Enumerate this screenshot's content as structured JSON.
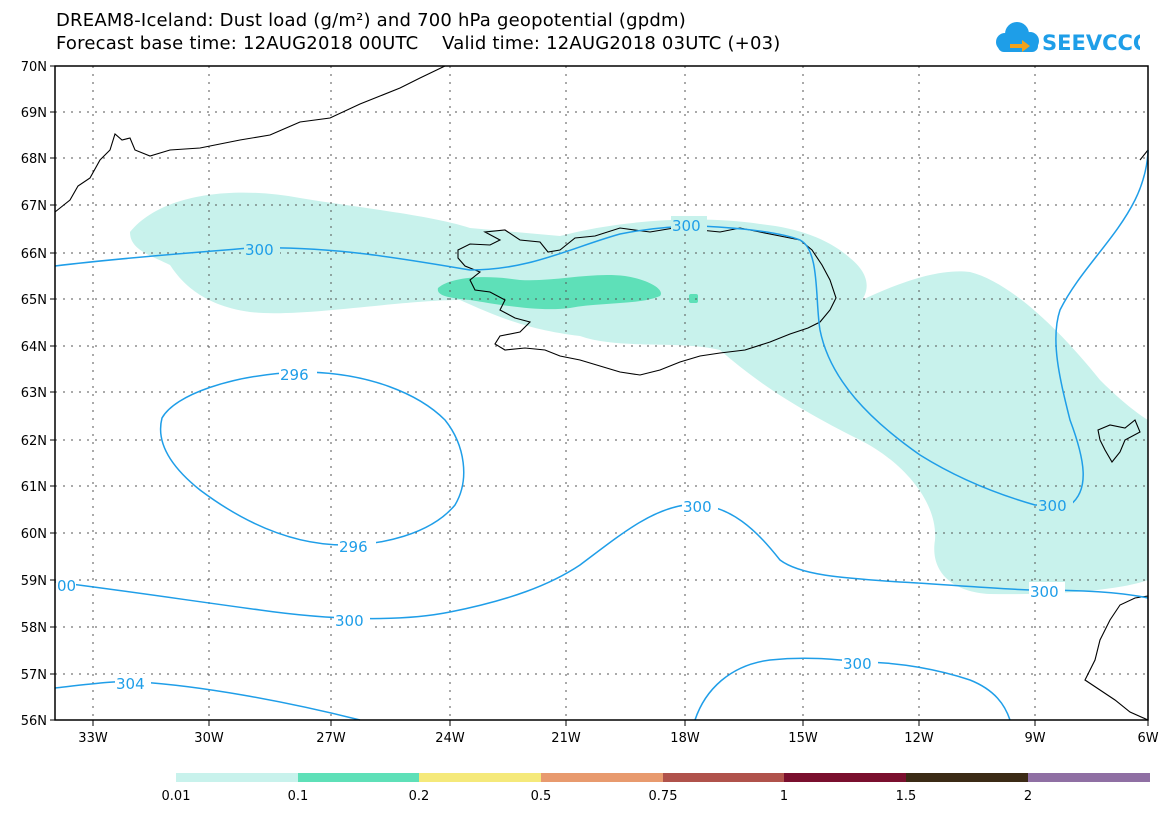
{
  "title_line1": "DREAM8-Iceland: Dust load (g/m²) and 700 hPa geopotential (gpdm)",
  "title_line2": "Forecast base time: 12AUG2018 00UTC    Valid time: 12AUG2018 03UTC (+03)",
  "logo_text": "SEEVCCC",
  "lat_labels": [
    "70N",
    "69N",
    "68N",
    "67N",
    "66N",
    "65N",
    "64N",
    "63N",
    "62N",
    "61N",
    "60N",
    "59N",
    "58N",
    "57N",
    "56N"
  ],
  "lon_labels": [
    "33W",
    "30W",
    "27W",
    "24W",
    "21W",
    "18W",
    "15W",
    "12W",
    "9W",
    "6W"
  ],
  "contour_labels": {
    "c300_north_w": "300",
    "c300_north_e": "300",
    "c296": "296",
    "c296_b": "296",
    "c300_mid": "300",
    "c300_south": "300",
    "c300_east": "300",
    "c300_se": "300",
    "c300_low": "300",
    "c304": "304",
    "c300_edge": "00"
  },
  "colorbar": {
    "colors": [
      "#c8f2ec",
      "#5ee0b8",
      "#f5e97a",
      "#e89a6e",
      "#b0524b",
      "#7a0f2e",
      "#3b2a15",
      "#8f6fa3"
    ],
    "labels": [
      "0.01",
      "0.1",
      "0.2",
      "0.5",
      "0.75",
      "1",
      "1.5",
      "2"
    ]
  },
  "colors": {
    "dust_low": "#c8f2ec",
    "dust_mid": "#5ee0b8",
    "contour": "#1f9ee8",
    "logo": "#1e9ee8"
  }
}
